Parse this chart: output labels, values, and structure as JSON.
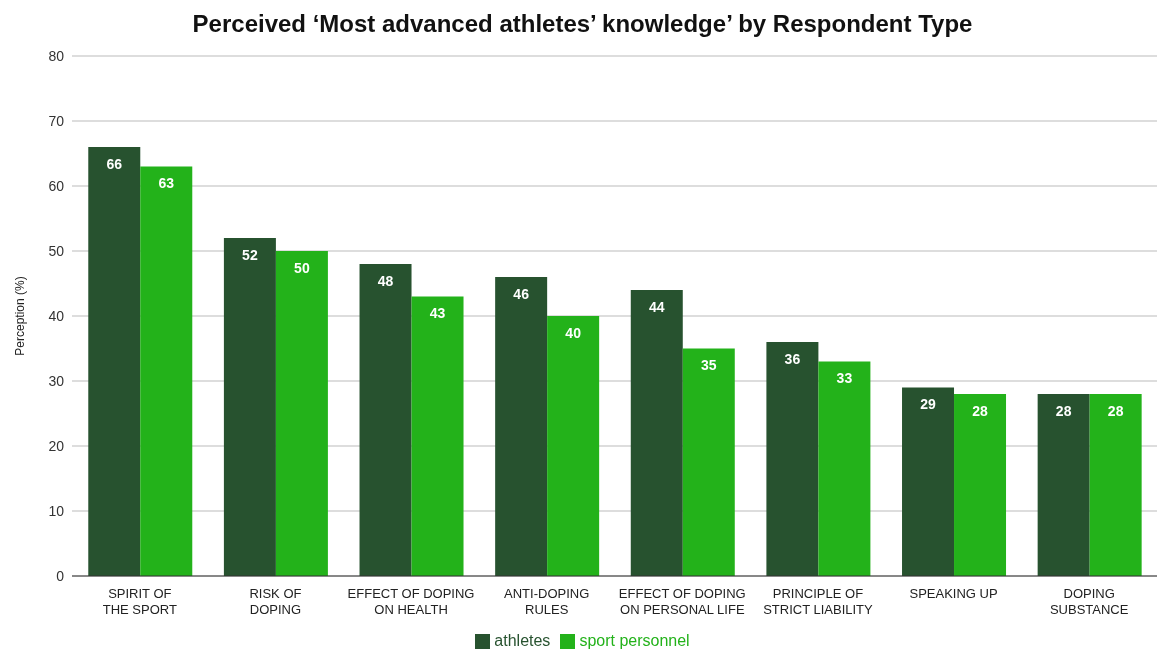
{
  "chart_data": {
    "type": "bar",
    "title": "Perceived ‘Most advanced athletes’ knowledge’ by Respondent Type",
    "ylabel": "Perception (%)",
    "categories": [
      "SPIRIT OF\nTHE SPORT",
      "RISK OF\nDOPING",
      "EFFECT OF DOPING\nON HEALTH",
      "ANTI-DOPING\nRULES",
      "EFFECT OF DOPING\nON PERSONAL LIFE",
      "PRINCIPLE OF\nSTRICT LIABILITY",
      "SPEAKING UP",
      "DOPING\nSUBSTANCE"
    ],
    "series": [
      {
        "name": "athletes",
        "color": "#27522f",
        "values": [
          66,
          52,
          48,
          46,
          44,
          36,
          29,
          28
        ]
      },
      {
        "name": "sport personnel",
        "color": "#23b21a",
        "values": [
          63,
          50,
          43,
          40,
          35,
          33,
          28,
          28
        ]
      }
    ],
    "ylim": [
      0,
      80
    ],
    "yticks": [
      0,
      10,
      20,
      30,
      40,
      50,
      60,
      70,
      80
    ],
    "grid": "y",
    "legend": "bottom",
    "data_labels": true
  }
}
